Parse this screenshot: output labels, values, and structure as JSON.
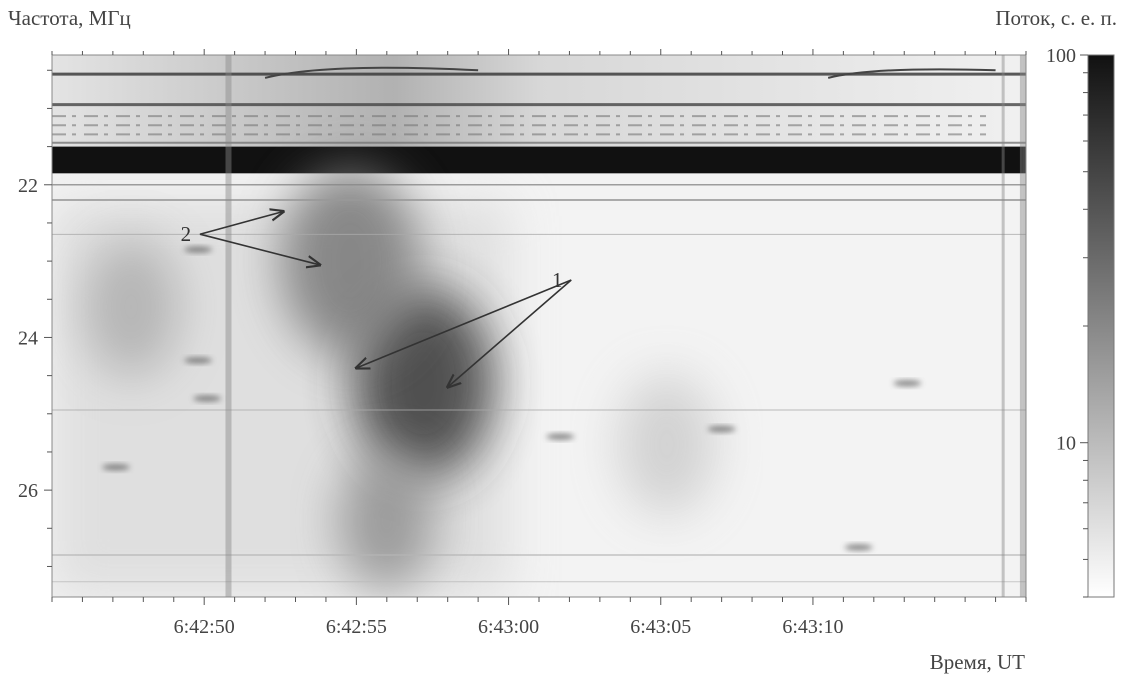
{
  "chart_data": {
    "type": "heatmap",
    "ylabel": "Частота, МГц",
    "xlabel": "Время, UT",
    "colorbar_label": "Поток, с. е. п.",
    "colorbar_scale": "log",
    "colorbar_ticks": [
      "100",
      "10"
    ],
    "colorbar_values": [
      100,
      10
    ],
    "colorbar_range": [
      4,
      100
    ],
    "x_ticks": [
      "6:42:50",
      "6:42:55",
      "6:43:00",
      "6:43:05",
      "6:43:10"
    ],
    "x_tick_seconds": [
      50,
      55,
      60,
      65,
      70
    ],
    "xlim_seconds": [
      45,
      77
    ],
    "y_ticks": [
      "22",
      "24",
      "26"
    ],
    "y_tick_values": [
      22,
      24,
      26
    ],
    "ylim": [
      20.3,
      27.4
    ],
    "y_inverted": true,
    "colormap": [
      "#ffffff",
      "#111111"
    ],
    "annotations": [
      {
        "label": "2",
        "text_at": {
          "t": 49.4,
          "f": 22.7
        },
        "arrows_to": [
          {
            "t": 52.6,
            "f": 22.35
          },
          {
            "t": 53.8,
            "f": 23.05
          }
        ]
      },
      {
        "label": "1",
        "text_at": {
          "t": 61.6,
          "f": 23.3
        },
        "arrows_to": [
          {
            "t": 55.0,
            "f": 24.4
          },
          {
            "t": 58.0,
            "f": 24.65
          }
        ]
      }
    ],
    "features": [
      {
        "name": "interference band",
        "f_range": [
          21.5,
          21.85
        ],
        "level": 100
      },
      {
        "name": "burst 1",
        "t": 57.2,
        "f": 24.6,
        "level": 60
      },
      {
        "name": "burst 1 lower part",
        "t": 56.0,
        "f": 26.4,
        "level": 18
      },
      {
        "name": "burst 2",
        "t": 54.8,
        "f": 23.0,
        "level": 25
      },
      {
        "name": "left emission",
        "t": 47.6,
        "f": 23.6,
        "level": 12
      },
      {
        "name": "right emission",
        "t": 65.2,
        "f": 25.4,
        "level": 8
      }
    ]
  }
}
